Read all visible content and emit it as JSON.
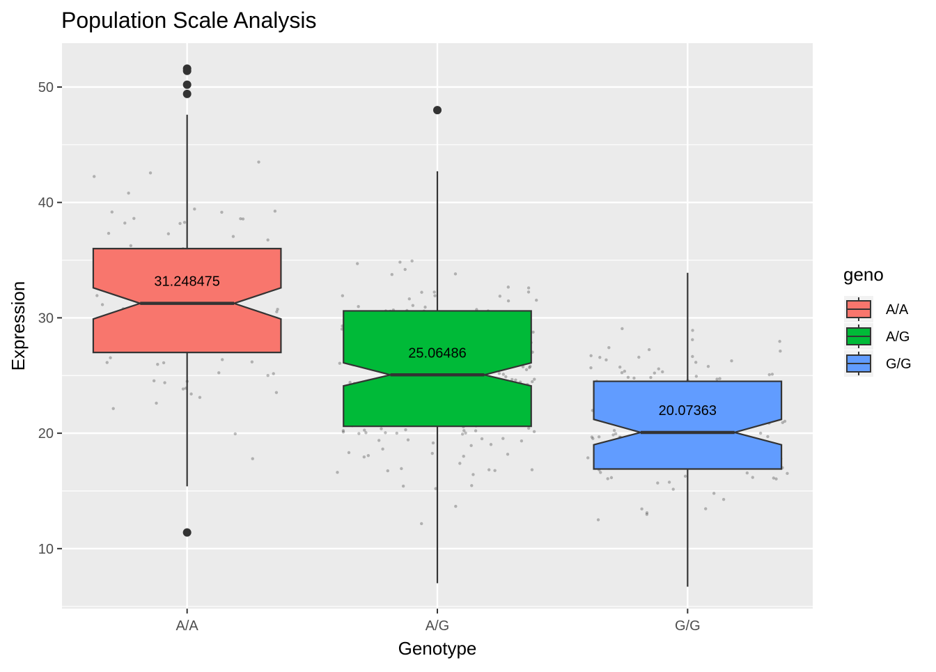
{
  "chart_data": {
    "type": "boxplot",
    "title": "Population Scale Analysis",
    "xlabel": "Genotype",
    "ylabel": "Expression",
    "categories": [
      "A/A",
      "A/G",
      "G/G"
    ],
    "ylim": [
      4.8,
      53.8
    ],
    "y_ticks": [
      10,
      20,
      30,
      40,
      50
    ],
    "grid": true,
    "legend": {
      "title": "geno",
      "position": "right",
      "entries": [
        "A/A",
        "A/G",
        "G/G"
      ]
    },
    "boxes": [
      {
        "category": "A/A",
        "color": "#F8766D",
        "q1": 27.0,
        "median": 31.25,
        "q3": 36.0,
        "notch_low": 29.9,
        "notch_high": 32.6,
        "whisker_low": 15.4,
        "whisker_high": 47.6,
        "median_label": "31.248475",
        "outliers": [
          51.6,
          51.4,
          50.2,
          49.4,
          11.4
        ]
      },
      {
        "category": "A/G",
        "color": "#00BA38",
        "q1": 20.6,
        "median": 25.06,
        "q3": 30.6,
        "notch_low": 24.1,
        "notch_high": 26.1,
        "whisker_low": 7.0,
        "whisker_high": 42.7,
        "median_label": "25.06486",
        "outliers": [
          48.0
        ]
      },
      {
        "category": "G/G",
        "color": "#619CFF",
        "q1": 16.9,
        "median": 20.07,
        "q3": 24.5,
        "notch_low": 19.0,
        "notch_high": 21.2,
        "whisker_low": 6.7,
        "whisker_high": 33.9,
        "median_label": "20.07363",
        "outliers": []
      }
    ],
    "jitter_points": [
      {
        "group": "A/A",
        "n": 105,
        "mean": 31.2,
        "sd": 8.5,
        "spread": 0.38
      },
      {
        "group": "A/G",
        "n": 260,
        "mean": 25.1,
        "sd": 7.2,
        "spread": 0.4
      },
      {
        "group": "G/G",
        "n": 160,
        "mean": 20.2,
        "sd": 5.9,
        "spread": 0.4
      }
    ]
  }
}
